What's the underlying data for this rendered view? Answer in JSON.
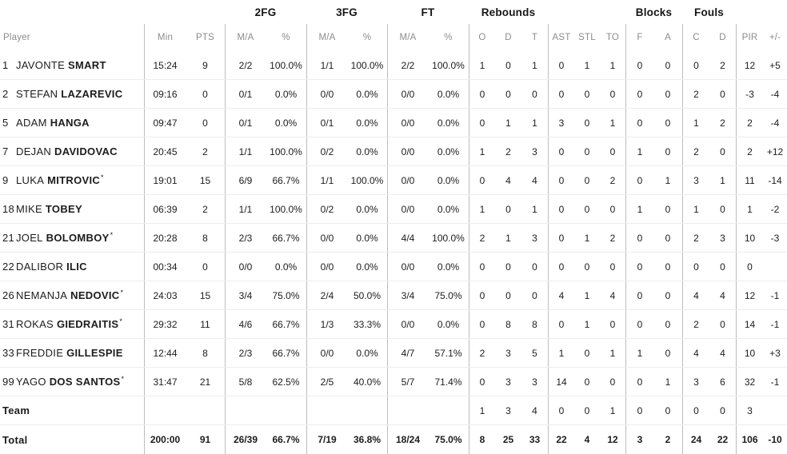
{
  "colors": {
    "header_text": "#8c8c8c",
    "body_text": "#1c1c1c",
    "column_divider": "#bdbdbd",
    "row_line": "#ededed",
    "background": "#ffffff"
  },
  "table": {
    "group_headers": {
      "fg2": "2FG",
      "fg3": "3FG",
      "ft": "FT",
      "rebounds": "Rebounds",
      "blocks": "Blocks",
      "fouls": "Fouls"
    },
    "columns": {
      "player": "Player",
      "min": "Min",
      "pts": "PTS",
      "fg2_ma": "M/A",
      "fg2_pct": "%",
      "fg3_ma": "M/A",
      "fg3_pct": "%",
      "ft_ma": "M/A",
      "ft_pct": "%",
      "reb_o": "O",
      "reb_d": "D",
      "reb_t": "T",
      "ast": "AST",
      "stl": "STL",
      "to": "TO",
      "blk_f": "F",
      "blk_a": "A",
      "foul_c": "C",
      "foul_d": "D",
      "pir": "PIR",
      "pm": "+/-"
    },
    "players": [
      {
        "number": "1",
        "first": "JAVONTE",
        "last": "SMART",
        "star": "",
        "min": "15:24",
        "pts": "9",
        "fg2_ma": "2/2",
        "fg2_pct": "100.0%",
        "fg3_ma": "1/1",
        "fg3_pct": "100.0%",
        "ft_ma": "2/2",
        "ft_pct": "100.0%",
        "reb_o": "1",
        "reb_d": "0",
        "reb_t": "1",
        "ast": "0",
        "stl": "1",
        "to": "1",
        "blk_f": "0",
        "blk_a": "0",
        "foul_c": "0",
        "foul_d": "2",
        "pir": "12",
        "pm": "+5"
      },
      {
        "number": "2",
        "first": "STEFAN",
        "last": "LAZAREVIC",
        "star": "",
        "min": "09:16",
        "pts": "0",
        "fg2_ma": "0/1",
        "fg2_pct": "0.0%",
        "fg3_ma": "0/0",
        "fg3_pct": "0.0%",
        "ft_ma": "0/0",
        "ft_pct": "0.0%",
        "reb_o": "0",
        "reb_d": "0",
        "reb_t": "0",
        "ast": "0",
        "stl": "0",
        "to": "0",
        "blk_f": "0",
        "blk_a": "0",
        "foul_c": "2",
        "foul_d": "0",
        "pir": "-3",
        "pm": "-4"
      },
      {
        "number": "5",
        "first": "ADAM",
        "last": "HANGA",
        "star": "",
        "min": "09:47",
        "pts": "0",
        "fg2_ma": "0/1",
        "fg2_pct": "0.0%",
        "fg3_ma": "0/1",
        "fg3_pct": "0.0%",
        "ft_ma": "0/0",
        "ft_pct": "0.0%",
        "reb_o": "0",
        "reb_d": "1",
        "reb_t": "1",
        "ast": "3",
        "stl": "0",
        "to": "1",
        "blk_f": "0",
        "blk_a": "0",
        "foul_c": "1",
        "foul_d": "2",
        "pir": "2",
        "pm": "-4"
      },
      {
        "number": "7",
        "first": "DEJAN",
        "last": "DAVIDOVAC",
        "star": "",
        "min": "20:45",
        "pts": "2",
        "fg2_ma": "1/1",
        "fg2_pct": "100.0%",
        "fg3_ma": "0/2",
        "fg3_pct": "0.0%",
        "ft_ma": "0/0",
        "ft_pct": "0.0%",
        "reb_o": "1",
        "reb_d": "2",
        "reb_t": "3",
        "ast": "0",
        "stl": "0",
        "to": "0",
        "blk_f": "1",
        "blk_a": "0",
        "foul_c": "2",
        "foul_d": "0",
        "pir": "2",
        "pm": "+12"
      },
      {
        "number": "9",
        "first": "LUKA",
        "last": "MITROVIC",
        "star": "*",
        "min": "19:01",
        "pts": "15",
        "fg2_ma": "6/9",
        "fg2_pct": "66.7%",
        "fg3_ma": "1/1",
        "fg3_pct": "100.0%",
        "ft_ma": "0/0",
        "ft_pct": "0.0%",
        "reb_o": "0",
        "reb_d": "4",
        "reb_t": "4",
        "ast": "0",
        "stl": "0",
        "to": "2",
        "blk_f": "0",
        "blk_a": "1",
        "foul_c": "3",
        "foul_d": "1",
        "pir": "11",
        "pm": "-14"
      },
      {
        "number": "18",
        "first": "MIKE",
        "last": "TOBEY",
        "star": "",
        "min": "06:39",
        "pts": "2",
        "fg2_ma": "1/1",
        "fg2_pct": "100.0%",
        "fg3_ma": "0/2",
        "fg3_pct": "0.0%",
        "ft_ma": "0/0",
        "ft_pct": "0.0%",
        "reb_o": "1",
        "reb_d": "0",
        "reb_t": "1",
        "ast": "0",
        "stl": "0",
        "to": "0",
        "blk_f": "1",
        "blk_a": "0",
        "foul_c": "1",
        "foul_d": "0",
        "pir": "1",
        "pm": "-2"
      },
      {
        "number": "21",
        "first": "JOEL",
        "last": "BOLOMBOY",
        "star": "*",
        "min": "20:28",
        "pts": "8",
        "fg2_ma": "2/3",
        "fg2_pct": "66.7%",
        "fg3_ma": "0/0",
        "fg3_pct": "0.0%",
        "ft_ma": "4/4",
        "ft_pct": "100.0%",
        "reb_o": "2",
        "reb_d": "1",
        "reb_t": "3",
        "ast": "0",
        "stl": "1",
        "to": "2",
        "blk_f": "0",
        "blk_a": "0",
        "foul_c": "2",
        "foul_d": "3",
        "pir": "10",
        "pm": "-3"
      },
      {
        "number": "22",
        "first": "DALIBOR",
        "last": "ILIC",
        "star": "",
        "min": "00:34",
        "pts": "0",
        "fg2_ma": "0/0",
        "fg2_pct": "0.0%",
        "fg3_ma": "0/0",
        "fg3_pct": "0.0%",
        "ft_ma": "0/0",
        "ft_pct": "0.0%",
        "reb_o": "0",
        "reb_d": "0",
        "reb_t": "0",
        "ast": "0",
        "stl": "0",
        "to": "0",
        "blk_f": "0",
        "blk_a": "0",
        "foul_c": "0",
        "foul_d": "0",
        "pir": "0",
        "pm": ""
      },
      {
        "number": "26",
        "first": "NEMANJA",
        "last": "NEDOVIC",
        "star": "*",
        "min": "24:03",
        "pts": "15",
        "fg2_ma": "3/4",
        "fg2_pct": "75.0%",
        "fg3_ma": "2/4",
        "fg3_pct": "50.0%",
        "ft_ma": "3/4",
        "ft_pct": "75.0%",
        "reb_o": "0",
        "reb_d": "0",
        "reb_t": "0",
        "ast": "4",
        "stl": "1",
        "to": "4",
        "blk_f": "0",
        "blk_a": "0",
        "foul_c": "4",
        "foul_d": "4",
        "pir": "12",
        "pm": "-1"
      },
      {
        "number": "31",
        "first": "ROKAS",
        "last": "GIEDRAITIS",
        "star": "*",
        "min": "29:32",
        "pts": "11",
        "fg2_ma": "4/6",
        "fg2_pct": "66.7%",
        "fg3_ma": "1/3",
        "fg3_pct": "33.3%",
        "ft_ma": "0/0",
        "ft_pct": "0.0%",
        "reb_o": "0",
        "reb_d": "8",
        "reb_t": "8",
        "ast": "0",
        "stl": "1",
        "to": "0",
        "blk_f": "0",
        "blk_a": "0",
        "foul_c": "2",
        "foul_d": "0",
        "pir": "14",
        "pm": "-1"
      },
      {
        "number": "33",
        "first": "FREDDIE",
        "last": "GILLESPIE",
        "star": "",
        "min": "12:44",
        "pts": "8",
        "fg2_ma": "2/3",
        "fg2_pct": "66.7%",
        "fg3_ma": "0/0",
        "fg3_pct": "0.0%",
        "ft_ma": "4/7",
        "ft_pct": "57.1%",
        "reb_o": "2",
        "reb_d": "3",
        "reb_t": "5",
        "ast": "1",
        "stl": "0",
        "to": "1",
        "blk_f": "1",
        "blk_a": "0",
        "foul_c": "4",
        "foul_d": "4",
        "pir": "10",
        "pm": "+3"
      },
      {
        "number": "99",
        "first": "YAGO",
        "last": "DOS SANTOS",
        "star": "*",
        "min": "31:47",
        "pts": "21",
        "fg2_ma": "5/8",
        "fg2_pct": "62.5%",
        "fg3_ma": "2/5",
        "fg3_pct": "40.0%",
        "ft_ma": "5/7",
        "ft_pct": "71.4%",
        "reb_o": "0",
        "reb_d": "3",
        "reb_t": "3",
        "ast": "14",
        "stl": "0",
        "to": "0",
        "blk_f": "0",
        "blk_a": "1",
        "foul_c": "3",
        "foul_d": "6",
        "pir": "32",
        "pm": "-1"
      }
    ],
    "team_row": {
      "label": "Team",
      "min": "",
      "pts": "",
      "fg2_ma": "",
      "fg2_pct": "",
      "fg3_ma": "",
      "fg3_pct": "",
      "ft_ma": "",
      "ft_pct": "",
      "reb_o": "1",
      "reb_d": "3",
      "reb_t": "4",
      "ast": "0",
      "stl": "0",
      "to": "1",
      "blk_f": "0",
      "blk_a": "0",
      "foul_c": "0",
      "foul_d": "0",
      "pir": "3",
      "pm": ""
    },
    "total_row": {
      "label": "Total",
      "min": "200:00",
      "pts": "91",
      "fg2_ma": "26/39",
      "fg2_pct": "66.7%",
      "fg3_ma": "7/19",
      "fg3_pct": "36.8%",
      "ft_ma": "18/24",
      "ft_pct": "75.0%",
      "reb_o": "8",
      "reb_d": "25",
      "reb_t": "33",
      "ast": "22",
      "stl": "4",
      "to": "12",
      "blk_f": "3",
      "blk_a": "2",
      "foul_c": "24",
      "foul_d": "22",
      "pir": "106",
      "pm": "-10"
    }
  }
}
